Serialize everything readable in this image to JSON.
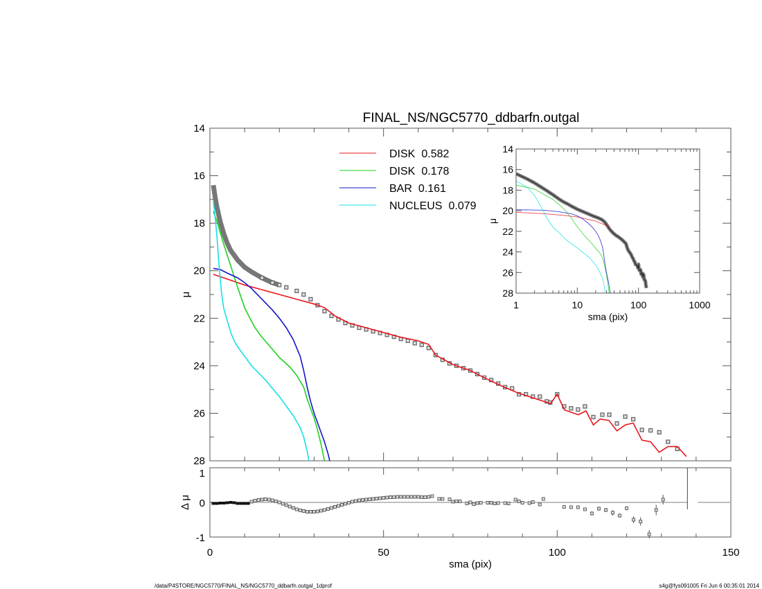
{
  "title": "FINAL_NS/NGC5770_ddbarfn.outgal",
  "footer_left": "/data/P4STORE/NGC5770/FINAL_NS/NGC5770_ddbarfn.outgal_1dprof",
  "footer_right": "s4g@fys091005  Fri Jun  6 00:35:01 2014",
  "chart_data": [
    {
      "type": "line",
      "panel": "main",
      "xlabel": "",
      "ylabel": "μ",
      "xlim": [
        0,
        150
      ],
      "ylim": [
        28,
        14
      ],
      "y_inverted": true,
      "xticks": [],
      "yticks": [
        "14",
        "16",
        "18",
        "20",
        "22",
        "24",
        "26",
        "28"
      ],
      "legend_position": "top-center",
      "observed": {
        "color": "#606060",
        "marker": "square",
        "points": [
          [
            1,
            16.4
          ],
          [
            1.5,
            16.9
          ],
          [
            2,
            17.3
          ],
          [
            3,
            17.95
          ],
          [
            4,
            18.45
          ],
          [
            5,
            18.85
          ],
          [
            6,
            19.15
          ],
          [
            7,
            19.35
          ],
          [
            8,
            19.55
          ],
          [
            10,
            19.85
          ],
          [
            12,
            20.05
          ],
          [
            15,
            20.3
          ],
          [
            18,
            20.5
          ],
          [
            20,
            20.6
          ],
          [
            22,
            20.7
          ],
          [
            25,
            20.85
          ],
          [
            27,
            21.0
          ],
          [
            29,
            21.2
          ],
          [
            31,
            21.45
          ],
          [
            33,
            21.7
          ],
          [
            35,
            21.9
          ],
          [
            37,
            22.05
          ],
          [
            39,
            22.2
          ],
          [
            41,
            22.3
          ],
          [
            43,
            22.4
          ],
          [
            45,
            22.47
          ],
          [
            47,
            22.55
          ],
          [
            49,
            22.62
          ],
          [
            51,
            22.7
          ],
          [
            53,
            22.78
          ],
          [
            55,
            22.87
          ],
          [
            57,
            22.95
          ],
          [
            59,
            23.05
          ],
          [
            61,
            23.12
          ],
          [
            63,
            23.25
          ],
          [
            65,
            23.55
          ],
          [
            67,
            23.75
          ],
          [
            69,
            23.9
          ],
          [
            71,
            24.0
          ],
          [
            73,
            24.1
          ],
          [
            75,
            24.2
          ],
          [
            77,
            24.35
          ],
          [
            79,
            24.5
          ],
          [
            81,
            24.6
          ],
          [
            83,
            24.75
          ],
          [
            85,
            24.9
          ],
          [
            87,
            24.95
          ],
          [
            89,
            25.2
          ],
          [
            91,
            25.2
          ],
          [
            93,
            25.3
          ],
          [
            95,
            25.3
          ],
          [
            97,
            25.5
          ],
          [
            98,
            25.55
          ],
          [
            100,
            25.2
          ],
          [
            102,
            25.71
          ],
          [
            104,
            25.79
          ],
          [
            106,
            25.84
          ],
          [
            108,
            25.71
          ],
          [
            110.4,
            26.16
          ],
          [
            113,
            26.06
          ],
          [
            115,
            26.06
          ],
          [
            117.2,
            26.43
          ],
          [
            119.6,
            26.14
          ],
          [
            121.9,
            26.25
          ],
          [
            124.4,
            26.7
          ],
          [
            126.9,
            26.72
          ],
          [
            129.4,
            26.8
          ],
          [
            131.9,
            27.2
          ],
          [
            134.6,
            27.5
          ]
        ]
      },
      "series": [
        {
          "name": "DISK",
          "fraction": "0.582",
          "color": "#e8141c",
          "points": [
            [
              1,
              20.15
            ],
            [
              5,
              20.35
            ],
            [
              10,
              20.6
            ],
            [
              15,
              20.8
            ],
            [
              20,
              21.0
            ],
            [
              25,
              21.2
            ],
            [
              30,
              21.4
            ],
            [
              33,
              21.55
            ],
            [
              36,
              21.9
            ],
            [
              40,
              22.2
            ],
            [
              45,
              22.4
            ],
            [
              50,
              22.6
            ],
            [
              55,
              22.8
            ],
            [
              60,
              22.95
            ],
            [
              63,
              23.1
            ],
            [
              65,
              23.55
            ],
            [
              70,
              23.95
            ],
            [
              75,
              24.2
            ],
            [
              79.2,
              24.52
            ],
            [
              84,
              24.85
            ],
            [
              88.8,
              25.15
            ],
            [
              93,
              25.35
            ],
            [
              98.1,
              25.59
            ],
            [
              100,
              25.2
            ],
            [
              102.1,
              25.86
            ],
            [
              106.1,
              26.06
            ],
            [
              108.3,
              25.9
            ],
            [
              110.4,
              26.49
            ],
            [
              112.4,
              26.24
            ],
            [
              114.9,
              26.3
            ],
            [
              117.2,
              26.74
            ],
            [
              119.6,
              26.49
            ],
            [
              121.9,
              26.41
            ],
            [
              124.4,
              27.13
            ],
            [
              126.9,
              27.2
            ],
            [
              129.4,
              27.64
            ],
            [
              131.9,
              27.4
            ],
            [
              134.6,
              27.4
            ],
            [
              137.2,
              27.82
            ]
          ]
        },
        {
          "name": "DISK",
          "fraction": "0.178",
          "color": "#1ed21e",
          "points": [
            [
              1,
              17.5
            ],
            [
              2,
              17.9
            ],
            [
              4,
              18.9
            ],
            [
              6,
              19.8
            ],
            [
              8,
              20.7
            ],
            [
              10,
              21.55
            ],
            [
              11,
              21.85
            ],
            [
              13,
              22.4
            ],
            [
              15,
              22.8
            ],
            [
              18,
              23.3
            ],
            [
              20,
              23.65
            ],
            [
              23,
              24.05
            ],
            [
              25,
              24.4
            ],
            [
              27,
              24.9
            ],
            [
              28,
              25.4
            ],
            [
              29,
              25.8
            ],
            [
              30,
              26.2
            ],
            [
              31,
              26.7
            ],
            [
              32,
              27.3
            ],
            [
              33,
              28.0
            ]
          ]
        },
        {
          "name": "BAR",
          "fraction": "0.161",
          "color": "#1414c8",
          "points": [
            [
              1,
              19.9
            ],
            [
              3,
              19.95
            ],
            [
              5,
              20.1
            ],
            [
              8,
              20.3
            ],
            [
              10,
              20.5
            ],
            [
              12,
              20.75
            ],
            [
              15,
              21.2
            ],
            [
              18,
              21.65
            ],
            [
              20,
              22.0
            ],
            [
              22,
              22.4
            ],
            [
              24,
              22.9
            ],
            [
              26,
              23.6
            ],
            [
              27,
              24.2
            ],
            [
              28,
              24.9
            ],
            [
              29,
              25.5
            ],
            [
              30,
              26.0
            ],
            [
              31,
              26.4
            ],
            [
              32,
              26.8
            ],
            [
              33,
              27.2
            ],
            [
              34,
              27.7
            ],
            [
              34.5,
              28.0
            ]
          ]
        },
        {
          "name": "NUCLEUS",
          "fraction": "0.079",
          "color": "#14e0e6",
          "points": [
            [
              1,
              17.1
            ],
            [
              1.5,
              17.7
            ],
            [
              2,
              18.5
            ],
            [
              2.5,
              19.5
            ],
            [
              3,
              20.4
            ],
            [
              3.5,
              21.1
            ],
            [
              4,
              21.6
            ],
            [
              5,
              22.1
            ],
            [
              6,
              22.6
            ],
            [
              7,
              22.95
            ],
            [
              8,
              23.2
            ],
            [
              10,
              23.6
            ],
            [
              12,
              24.0
            ],
            [
              14,
              24.3
            ],
            [
              16,
              24.6
            ],
            [
              18,
              24.95
            ],
            [
              20,
              25.3
            ],
            [
              22,
              25.7
            ],
            [
              24,
              26.1
            ],
            [
              26,
              26.6
            ],
            [
              27,
              27.0
            ],
            [
              28,
              27.6
            ],
            [
              28.5,
              28.0
            ]
          ]
        }
      ]
    },
    {
      "type": "scatter",
      "panel": "residual",
      "xlabel": "sma (pix)",
      "ylabel": "Δ μ",
      "xlim": [
        0,
        150
      ],
      "ylim": [
        -1.05,
        1.05
      ],
      "xticks": [
        "0",
        "50",
        "100",
        "150"
      ],
      "yticks": [
        "1",
        "0",
        "-1"
      ],
      "marker_color": "#606060",
      "zero_line_color": "#aaaaaa",
      "points": [
        [
          1,
          -0.03,
          0
        ],
        [
          2,
          -0.03,
          0
        ],
        [
          3,
          -0.02,
          0
        ],
        [
          4,
          -0.02,
          0
        ],
        [
          5,
          -0.01,
          0
        ],
        [
          6,
          0.0,
          0
        ],
        [
          7,
          -0.01,
          0
        ],
        [
          8,
          -0.03,
          0
        ],
        [
          9,
          -0.03,
          0
        ],
        [
          10,
          -0.03,
          0
        ],
        [
          11,
          -0.03,
          0
        ],
        [
          12,
          0.02,
          0
        ],
        [
          13,
          0.05,
          0
        ],
        [
          14,
          0.07,
          0
        ],
        [
          15,
          0.08,
          0
        ],
        [
          16,
          0.09,
          0
        ],
        [
          17,
          0.08,
          0
        ],
        [
          18,
          0.06,
          0
        ],
        [
          19,
          0.03,
          0
        ],
        [
          20,
          0.0,
          0
        ],
        [
          21,
          -0.04,
          0
        ],
        [
          22,
          -0.08,
          0
        ],
        [
          23,
          -0.12,
          0
        ],
        [
          24,
          -0.16,
          0
        ],
        [
          25,
          -0.2,
          0
        ],
        [
          26,
          -0.23,
          0
        ],
        [
          27,
          -0.25,
          0
        ],
        [
          28,
          -0.27,
          0
        ],
        [
          29,
          -0.27,
          0
        ],
        [
          30,
          -0.27,
          0
        ],
        [
          31,
          -0.26,
          0
        ],
        [
          32,
          -0.24,
          0
        ],
        [
          33,
          -0.22,
          0
        ],
        [
          34,
          -0.19,
          0
        ],
        [
          35,
          -0.16,
          0
        ],
        [
          36,
          -0.13,
          0
        ],
        [
          37,
          -0.1,
          0
        ],
        [
          38,
          -0.07,
          0
        ],
        [
          39,
          -0.04,
          0
        ],
        [
          40,
          -0.01,
          0
        ],
        [
          41,
          0.02,
          0
        ],
        [
          42,
          0.04,
          0
        ],
        [
          43,
          0.06,
          0
        ],
        [
          44,
          0.07,
          0
        ],
        [
          45,
          0.08,
          0
        ],
        [
          46,
          0.09,
          0
        ],
        [
          47,
          0.1,
          0
        ],
        [
          48,
          0.11,
          0
        ],
        [
          49,
          0.12,
          0
        ],
        [
          50,
          0.13,
          0
        ],
        [
          51,
          0.14,
          0
        ],
        [
          52,
          0.15,
          0
        ],
        [
          53,
          0.15,
          0
        ],
        [
          54,
          0.16,
          0
        ],
        [
          55,
          0.16,
          0
        ],
        [
          56,
          0.16,
          0
        ],
        [
          57,
          0.16,
          0
        ],
        [
          58,
          0.16,
          0
        ],
        [
          59,
          0.16,
          0
        ],
        [
          60,
          0.16,
          0
        ],
        [
          61,
          0.15,
          0
        ],
        [
          62,
          0.15,
          0
        ],
        [
          63,
          0.16,
          0
        ],
        [
          64,
          0.18,
          0
        ],
        [
          66,
          0.1,
          0
        ],
        [
          67,
          0.1,
          0
        ],
        [
          69,
          0.09,
          0
        ],
        [
          70,
          0.02,
          0
        ],
        [
          71,
          0.03,
          0
        ],
        [
          72,
          0.03,
          0
        ],
        [
          74,
          -0.03,
          0
        ],
        [
          75,
          0.0,
          0
        ],
        [
          76,
          -0.05,
          0
        ],
        [
          77,
          -0.02,
          0
        ],
        [
          78,
          -0.01,
          0
        ],
        [
          80,
          -0.01,
          0
        ],
        [
          81,
          -0.01,
          0
        ],
        [
          82,
          -0.03,
          0
        ],
        [
          83,
          -0.02,
          0
        ],
        [
          85,
          -0.02,
          0
        ],
        [
          86,
          -0.03,
          0
        ],
        [
          88,
          0.08,
          0
        ],
        [
          89,
          0.03,
          0
        ],
        [
          90,
          -0.01,
          0
        ],
        [
          92,
          -0.02,
          0
        ],
        [
          93,
          0.01,
          0
        ],
        [
          95,
          -0.06,
          0
        ],
        [
          96,
          0.1,
          0
        ],
        [
          102,
          -0.13,
          0.04
        ],
        [
          104,
          -0.14,
          0.04
        ],
        [
          106,
          -0.14,
          0.05
        ],
        [
          108,
          -0.2,
          0.05
        ],
        [
          110,
          -0.32,
          0.06
        ],
        [
          112,
          -0.18,
          0.06
        ],
        [
          114,
          -0.22,
          0.06
        ],
        [
          116,
          -0.3,
          0.08
        ],
        [
          118,
          -0.38,
          0.06
        ],
        [
          120,
          -0.17,
          0.06
        ],
        [
          122,
          -0.5,
          0.1
        ],
        [
          124,
          -0.55,
          0.12
        ],
        [
          126.5,
          -0.92,
          0.12
        ],
        [
          128.5,
          -0.22,
          0.15
        ],
        [
          130.5,
          0.08,
          0.14
        ]
      ],
      "vertical_marker_x": 137.5
    },
    {
      "type": "line",
      "panel": "inset",
      "xlabel": "sma (pix)",
      "ylabel": "μ",
      "xscale": "log",
      "xlim": [
        1,
        1000
      ],
      "ylim": [
        28,
        14
      ],
      "y_inverted": true,
      "xticks": [
        "1",
        "10",
        "100",
        "1000"
      ],
      "yticks": [
        "14",
        "16",
        "18",
        "20",
        "22",
        "24",
        "26",
        "28"
      ]
    }
  ]
}
